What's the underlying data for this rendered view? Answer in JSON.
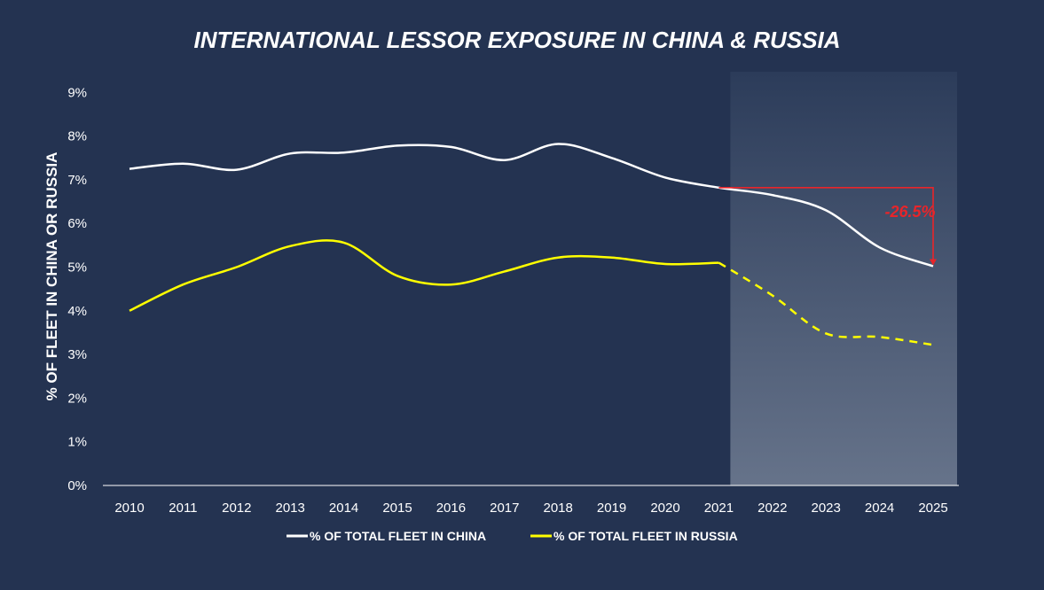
{
  "colors": {
    "background": "#243351",
    "china": "#ffffff",
    "russia": "#ffff00",
    "annotation": "#e8252a",
    "text": "#ffffff"
  },
  "chart_data": {
    "type": "line",
    "title": "INTERNATIONAL LESSOR EXPOSURE IN CHINA & RUSSIA",
    "ylabel": "% OF FLEET IN CHINA OR RUSSIA",
    "xlabel": "",
    "x": [
      "2010",
      "2011",
      "2012",
      "2013",
      "2014",
      "2015",
      "2016",
      "2017",
      "2018",
      "2019",
      "2020",
      "2021",
      "2022",
      "2023",
      "2024",
      "2025"
    ],
    "yticks": [
      "0%",
      "1%",
      "2%",
      "3%",
      "4%",
      "5%",
      "6%",
      "7%",
      "8%",
      "9%"
    ],
    "ylim": [
      0,
      9
    ],
    "grid": false,
    "legend_position": "bottom",
    "forecast_start": "2021",
    "series": [
      {
        "name": "% OF TOTAL FLEET IN CHINA",
        "color": "#ffffff",
        "style": "solid",
        "values": [
          7.25,
          7.37,
          7.23,
          7.6,
          7.62,
          7.78,
          7.75,
          7.45,
          7.82,
          7.5,
          7.05,
          6.82,
          6.65,
          6.3,
          5.45,
          5.02
        ]
      },
      {
        "name": "% OF TOTAL FLEET IN RUSSIA",
        "color": "#ffff00",
        "style": "solid-then-dashed",
        "values": [
          4.0,
          4.6,
          5.0,
          5.48,
          5.56,
          4.8,
          4.6,
          4.9,
          5.22,
          5.22,
          5.07,
          5.1,
          4.35,
          3.48,
          3.4,
          3.22
        ]
      }
    ],
    "annotation": {
      "text": "-26.5%",
      "from_x": "2021",
      "to_x": "2025"
    }
  }
}
